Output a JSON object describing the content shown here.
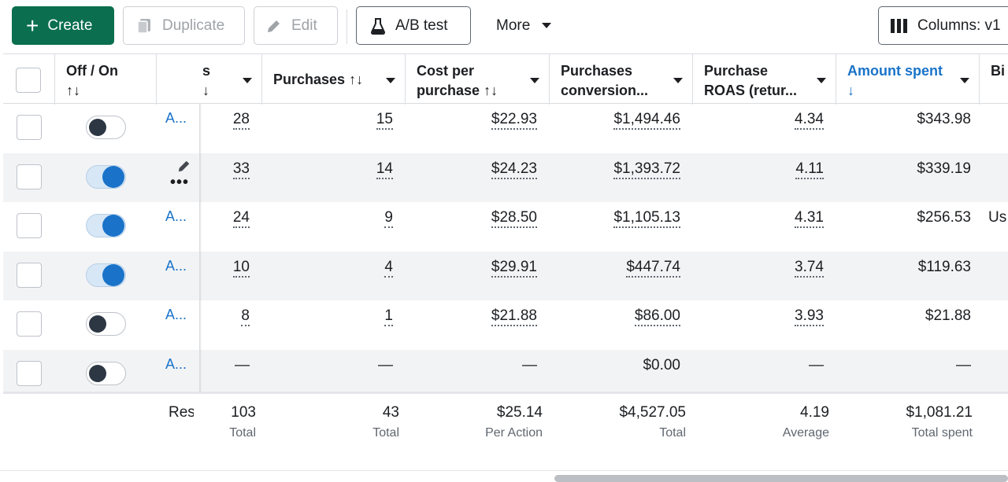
{
  "toolbar": {
    "create_label": "Create",
    "duplicate_label": "Duplicate",
    "edit_label": "Edit",
    "ab_test_label": "A/B test",
    "more_label": "More",
    "columns_label": "Columns: v1"
  },
  "columns": {
    "off_on": "Off / On",
    "sort_glyph": "↑↓",
    "partial_col": "s",
    "partial_col_sort": "↓",
    "purchases": "Purchases",
    "cost_per_purchase_1": "Cost per",
    "cost_per_purchase_2": "purchase",
    "purchases_conv_1": "Purchases",
    "purchases_conv_2": "conversion...",
    "roas_1": "Purchase",
    "roas_2": "ROAS (retur...",
    "amount_spent": "Amount spent",
    "amount_spent_sort": "↓",
    "bid": "Bi"
  },
  "rows": [
    {
      "name": "A...",
      "on": false,
      "results": "28",
      "purchases": "15",
      "cpp": "$22.93",
      "conv": "$1,494.46",
      "roas": "4.34",
      "spent": "$343.98",
      "bid": ""
    },
    {
      "name": "",
      "on": true,
      "results": "33",
      "purchases": "14",
      "cpp": "$24.23",
      "conv": "$1,393.72",
      "roas": "4.11",
      "spent": "$339.19",
      "bid": ""
    },
    {
      "name": "A...",
      "on": true,
      "results": "24",
      "purchases": "9",
      "cpp": "$28.50",
      "conv": "$1,105.13",
      "roas": "4.31",
      "spent": "$256.53",
      "bid": "Us"
    },
    {
      "name": "A...",
      "on": true,
      "results": "10",
      "purchases": "4",
      "cpp": "$29.91",
      "conv": "$447.74",
      "roas": "3.74",
      "spent": "$119.63",
      "bid": ""
    },
    {
      "name": "A...",
      "on": false,
      "results": "8",
      "purchases": "1",
      "cpp": "$21.88",
      "conv": "$86.00",
      "roas": "3.93",
      "spent": "$21.88",
      "bid": ""
    },
    {
      "name": "A...",
      "on": false,
      "results": "—",
      "purchases": "—",
      "cpp": "—",
      "conv": "$0.00",
      "roas": "—",
      "spent": "—",
      "bid": ""
    }
  ],
  "row_actions": {
    "more_glyph": "•••"
  },
  "totals": {
    "label": "Res",
    "results": "103",
    "results_sub": "Total",
    "purchases": "43",
    "purchases_sub": "Total",
    "cpp": "$25.14",
    "cpp_sub": "Per Action",
    "conv": "$4,527.05",
    "conv_sub": "Total",
    "roas": "4.19",
    "roas_sub": "Average",
    "spent": "$1,081.21",
    "spent_sub": "Total spent"
  }
}
